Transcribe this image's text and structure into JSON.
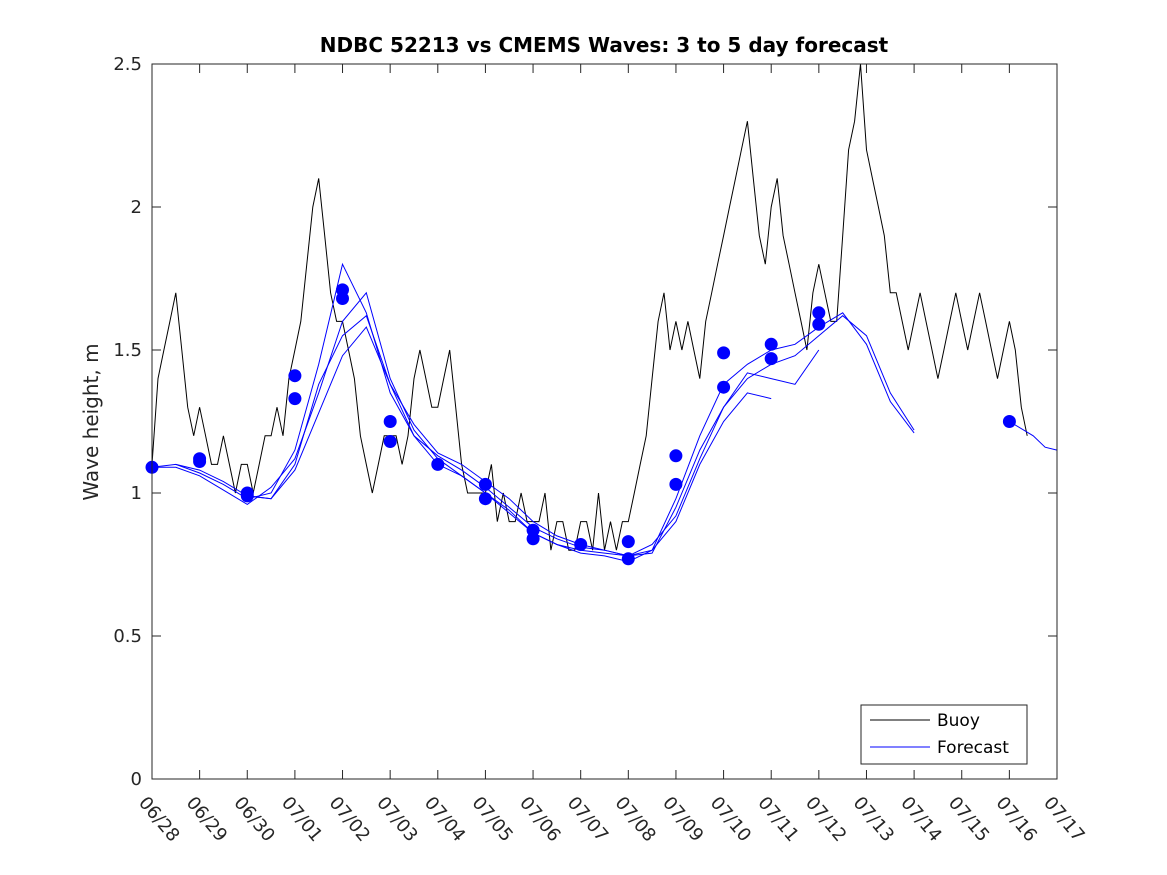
{
  "chart_data": {
    "type": "line",
    "title": "NDBC 52213 vs CMEMS Waves: 3 to 5 day forecast",
    "xlabel": "",
    "ylabel": "Wave height, m",
    "xlim": [
      "2021-06-28",
      "2021-07-17"
    ],
    "ylim": [
      0,
      2.5
    ],
    "x_tick_labels": [
      "06/28",
      "06/29",
      "06/30",
      "07/01",
      "07/02",
      "07/03",
      "07/04",
      "07/05",
      "07/06",
      "07/07",
      "07/08",
      "07/09",
      "07/10",
      "07/11",
      "07/12",
      "07/13",
      "07/14",
      "07/15",
      "07/16",
      "07/17"
    ],
    "y_tick_labels": [
      "0",
      "0.5",
      "1",
      "1.5",
      "2",
      "2.5"
    ],
    "grid": false,
    "legend_position": "bottom-right",
    "colors": {
      "buoy": "#000000",
      "forecast": "#0000ff"
    },
    "series": [
      {
        "name": "Buoy",
        "style": "line",
        "x": [
          "06/28 00:00",
          "06/28 03:00",
          "06/28 06:00",
          "06/28 09:00",
          "06/28 12:00",
          "06/28 15:00",
          "06/28 18:00",
          "06/28 21:00",
          "06/29 00:00",
          "06/29 03:00",
          "06/29 06:00",
          "06/29 09:00",
          "06/29 12:00",
          "06/29 15:00",
          "06/29 18:00",
          "06/29 21:00",
          "06/30 00:00",
          "06/30 03:00",
          "06/30 06:00",
          "06/30 09:00",
          "06/30 12:00",
          "06/30 15:00",
          "06/30 18:00",
          "06/30 21:00",
          "07/01 00:00",
          "07/01 03:00",
          "07/01 06:00",
          "07/01 09:00",
          "07/01 12:00",
          "07/01 15:00",
          "07/01 18:00",
          "07/01 21:00",
          "07/02 00:00",
          "07/02 03:00",
          "07/02 06:00",
          "07/02 09:00",
          "07/02 12:00",
          "07/02 15:00",
          "07/02 18:00",
          "07/02 21:00",
          "07/03 00:00",
          "07/03 03:00",
          "07/03 06:00",
          "07/03 09:00",
          "07/03 12:00",
          "07/03 15:00",
          "07/03 18:00",
          "07/03 21:00",
          "07/04 00:00",
          "07/04 03:00",
          "07/04 06:00",
          "07/04 09:00",
          "07/04 12:00",
          "07/04 15:00",
          "07/04 18:00",
          "07/04 21:00",
          "07/05 00:00",
          "07/05 03:00",
          "07/05 06:00",
          "07/05 09:00",
          "07/05 12:00",
          "07/05 15:00",
          "07/05 18:00",
          "07/05 21:00",
          "07/06 00:00",
          "07/06 03:00",
          "07/06 06:00",
          "07/06 09:00",
          "07/06 12:00",
          "07/06 15:00",
          "07/06 18:00",
          "07/06 21:00",
          "07/07 00:00",
          "07/07 03:00",
          "07/07 06:00",
          "07/07 09:00",
          "07/07 12:00",
          "07/07 15:00",
          "07/07 18:00",
          "07/07 21:00",
          "07/08 00:00",
          "07/08 03:00",
          "07/08 06:00",
          "07/08 09:00",
          "07/08 12:00",
          "07/08 15:00",
          "07/08 18:00",
          "07/08 21:00",
          "07/09 00:00",
          "07/09 03:00",
          "07/09 06:00",
          "07/09 09:00",
          "07/09 12:00",
          "07/09 15:00",
          "07/09 18:00",
          "07/09 21:00",
          "07/10 00:00",
          "07/10 03:00",
          "07/10 06:00",
          "07/10 09:00",
          "07/10 12:00",
          "07/10 15:00",
          "07/10 18:00",
          "07/10 21:00",
          "07/11 00:00",
          "07/11 03:00",
          "07/11 06:00",
          "07/11 09:00",
          "07/11 12:00",
          "07/11 15:00",
          "07/11 18:00",
          "07/11 21:00",
          "07/12 00:00",
          "07/12 03:00",
          "07/12 06:00",
          "07/12 09:00",
          "07/12 12:00",
          "07/12 15:00",
          "07/12 18:00",
          "07/12 21:00",
          "07/13 00:00",
          "07/13 03:00",
          "07/13 06:00",
          "07/13 09:00",
          "07/13 12:00",
          "07/13 15:00",
          "07/13 18:00",
          "07/13 21:00",
          "07/14 00:00",
          "07/14 03:00",
          "07/14 06:00",
          "07/14 09:00",
          "07/14 12:00",
          "07/14 15:00",
          "07/14 18:00",
          "07/14 21:00",
          "07/15 00:00",
          "07/15 03:00",
          "07/15 06:00",
          "07/15 09:00",
          "07/15 12:00",
          "07/15 15:00",
          "07/15 18:00",
          "07/15 21:00",
          "07/16 00:00",
          "07/16 03:00",
          "07/16 06:00",
          "07/16 09:00"
        ],
        "y": [
          1.1,
          1.4,
          1.5,
          1.6,
          1.7,
          1.5,
          1.3,
          1.2,
          1.3,
          1.2,
          1.1,
          1.1,
          1.2,
          1.1,
          1.0,
          1.1,
          1.1,
          1.0,
          1.1,
          1.2,
          1.2,
          1.3,
          1.2,
          1.4,
          1.5,
          1.6,
          1.8,
          2.0,
          2.1,
          1.9,
          1.7,
          1.6,
          1.6,
          1.5,
          1.4,
          1.2,
          1.1,
          1.0,
          1.1,
          1.2,
          1.2,
          1.2,
          1.1,
          1.2,
          1.4,
          1.5,
          1.4,
          1.3,
          1.3,
          1.4,
          1.5,
          1.3,
          1.1,
          1.0,
          1.0,
          1.0,
          1.0,
          1.1,
          0.9,
          1.0,
          0.9,
          0.9,
          1.0,
          0.9,
          0.9,
          0.9,
          1.0,
          0.8,
          0.9,
          0.9,
          0.8,
          0.8,
          0.9,
          0.9,
          0.8,
          1.0,
          0.8,
          0.9,
          0.8,
          0.9,
          0.9,
          1.0,
          1.1,
          1.2,
          1.4,
          1.6,
          1.7,
          1.5,
          1.6,
          1.5,
          1.6,
          1.5,
          1.4,
          1.6,
          1.7,
          1.8,
          1.9,
          2.0,
          2.1,
          2.2,
          2.3,
          2.1,
          1.9,
          1.8,
          2.0,
          2.1,
          1.9,
          1.8,
          1.7,
          1.6,
          1.5,
          1.7,
          1.8,
          1.7,
          1.6,
          1.6,
          1.9,
          2.2,
          2.3,
          2.5,
          2.2,
          2.1,
          2.0,
          1.9,
          1.7,
          1.7,
          1.6,
          1.5,
          1.6,
          1.7,
          1.6,
          1.5,
          1.4,
          1.5,
          1.6,
          1.7,
          1.6,
          1.5,
          1.6,
          1.7,
          1.6,
          1.5,
          1.4,
          1.5,
          1.6,
          1.5,
          1.3,
          1.2
        ]
      },
      {
        "name": "Forecast",
        "style": "line",
        "x": [
          "06/28 00:00",
          "06/28 12:00",
          "06/29 00:00",
          "06/29 12:00",
          "06/30 00:00",
          "06/30 12:00",
          "07/01 00:00",
          "07/01 12:00",
          "07/02 00:00",
          "07/02 12:00",
          "07/03 00:00",
          "07/03 12:00",
          "07/04 00:00",
          "07/04 12:00",
          "07/05 00:00",
          "07/05 12:00",
          "07/06 00:00",
          "07/06 12:00",
          "07/07 00:00",
          "07/07 12:00",
          "07/08 00:00",
          "07/08 12:00",
          "07/09 00:00",
          "07/09 12:00",
          "07/10 00:00",
          "07/10 12:00",
          "07/11 00:00",
          "07/11 12:00",
          "07/12 00:00",
          "07/12 12:00",
          "07/13 00:00",
          "07/13 12:00",
          "07/14 00:00"
        ],
        "y": [
          1.09,
          1.1,
          1.07,
          1.03,
          0.98,
          1.0,
          1.15,
          1.45,
          1.8,
          1.63,
          1.35,
          1.2,
          1.13,
          1.08,
          1.02,
          0.95,
          0.88,
          0.84,
          0.81,
          0.8,
          0.78,
          0.79,
          0.95,
          1.15,
          1.3,
          1.4,
          1.45,
          1.48,
          1.55,
          1.62,
          1.55,
          1.35,
          1.22
        ]
      },
      {
        "name": "Forecast",
        "style": "line",
        "x": [
          "06/28 00:00",
          "06/28 12:00",
          "06/29 00:00",
          "06/29 12:00",
          "06/30 00:00",
          "06/30 12:00",
          "07/01 00:00",
          "07/01 12:00",
          "07/02 00:00",
          "07/02 12:00",
          "07/03 00:00",
          "07/03 12:00",
          "07/04 00:00",
          "07/04 12:00",
          "07/05 00:00",
          "07/05 12:00",
          "07/06 00:00",
          "07/06 12:00",
          "07/07 00:00",
          "07/07 12:00",
          "07/08 00:00",
          "07/08 12:00",
          "07/09 00:00",
          "07/09 12:00",
          "07/10 00:00",
          "07/10 12:00",
          "07/11 00:00",
          "07/11 12:00",
          "07/12 00:00",
          "07/12 12:00",
          "07/13 00:00",
          "07/13 12:00",
          "07/14 00:00"
        ],
        "y": [
          1.09,
          1.09,
          1.06,
          1.01,
          0.96,
          1.02,
          1.12,
          1.35,
          1.6,
          1.7,
          1.4,
          1.22,
          1.12,
          1.06,
          1.0,
          0.93,
          0.86,
          0.82,
          0.79,
          0.78,
          0.76,
          0.8,
          0.98,
          1.2,
          1.38,
          1.45,
          1.5,
          1.52,
          1.58,
          1.63,
          1.52,
          1.32,
          1.21
        ]
      },
      {
        "name": "Forecast",
        "style": "line",
        "x": [
          "06/28 12:00",
          "06/29 00:00",
          "06/29 12:00",
          "06/30 00:00",
          "06/30 12:00",
          "07/01 00:00",
          "07/01 12:00",
          "07/02 00:00",
          "07/02 12:00",
          "07/03 00:00",
          "07/03 12:00",
          "07/04 00:00",
          "07/04 12:00",
          "07/05 00:00",
          "07/05 12:00",
          "07/06 00:00",
          "07/06 12:00",
          "07/07 00:00",
          "07/07 12:00",
          "07/08 00:00",
          "07/08 12:00",
          "07/09 00:00",
          "07/09 12:00",
          "07/10 00:00",
          "07/10 12:00",
          "07/11 00:00"
        ],
        "y": [
          1.1,
          1.08,
          1.04,
          0.99,
          0.98,
          1.1,
          1.38,
          1.55,
          1.62,
          1.38,
          1.24,
          1.14,
          1.1,
          1.04,
          0.98,
          0.9,
          0.85,
          0.82,
          0.8,
          0.78,
          0.8,
          0.9,
          1.1,
          1.25,
          1.35,
          1.33
        ]
      },
      {
        "name": "Forecast",
        "style": "line",
        "x": [
          "06/30 00:00",
          "06/30 12:00",
          "07/01 00:00",
          "07/01 12:00",
          "07/02 00:00",
          "07/02 12:00",
          "07/03 00:00",
          "07/03 12:00",
          "07/04 00:00",
          "07/04 12:00",
          "07/05 00:00",
          "07/05 12:00",
          "07/06 00:00",
          "07/06 12:00",
          "07/07 00:00",
          "07/07 12:00",
          "07/08 00:00",
          "07/08 12:00",
          "07/09 00:00",
          "07/09 12:00",
          "07/10 00:00",
          "07/10 12:00",
          "07/11 00:00",
          "07/11 12:00",
          "07/12 00:00"
        ],
        "y": [
          0.99,
          0.98,
          1.08,
          1.28,
          1.48,
          1.58,
          1.38,
          1.2,
          1.1,
          1.06,
          1.0,
          0.94,
          0.86,
          0.82,
          0.8,
          0.79,
          0.78,
          0.82,
          0.92,
          1.12,
          1.3,
          1.42,
          1.4,
          1.38,
          1.5
        ]
      },
      {
        "name": "Forecast",
        "style": "line",
        "x": [
          "07/16 00:00",
          "07/16 12:00",
          "07/16 18:00",
          "07/17 00:00"
        ],
        "y": [
          1.25,
          1.2,
          1.16,
          1.15
        ]
      }
    ],
    "markers": {
      "x": [
        "06/28 00:00",
        "06/29 00:00",
        "06/29 00:00",
        "06/30 00:00",
        "06/30 00:00",
        "07/01 00:00",
        "07/01 00:00",
        "07/02 00:00",
        "07/02 00:00",
        "07/03 00:00",
        "07/03 00:00",
        "07/04 00:00",
        "07/05 00:00",
        "07/05 00:00",
        "07/06 00:00",
        "07/06 00:00",
        "07/07 00:00",
        "07/08 00:00",
        "07/08 00:00",
        "07/09 00:00",
        "07/09 00:00",
        "07/10 00:00",
        "07/10 00:00",
        "07/11 00:00",
        "07/11 00:00",
        "07/12 00:00",
        "07/12 00:00",
        "07/16 00:00"
      ],
      "y": [
        1.09,
        1.12,
        1.11,
        1.0,
        0.99,
        1.41,
        1.33,
        1.71,
        1.68,
        1.25,
        1.18,
        1.1,
        1.03,
        0.98,
        0.87,
        0.84,
        0.82,
        0.83,
        0.77,
        1.13,
        1.03,
        1.49,
        1.37,
        1.52,
        1.47,
        1.63,
        1.59,
        1.25
      ]
    },
    "legend": {
      "entries": [
        {
          "label": "Buoy",
          "color": "#000000"
        },
        {
          "label": "Forecast",
          "color": "#0000ff"
        }
      ]
    }
  }
}
